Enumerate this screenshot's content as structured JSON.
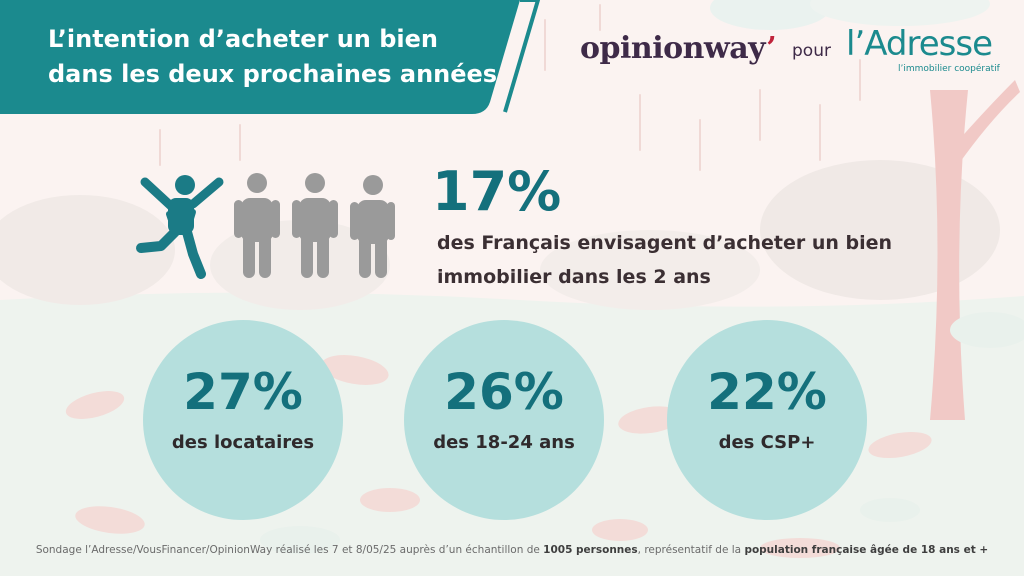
{
  "banner": {
    "title_line1": "L’intention d’acheter un bien",
    "title_line2": "dans les deux prochaines années"
  },
  "branding": {
    "opinionway": "opinionway",
    "opinionway_accent": "’",
    "pour": "pour",
    "ladresse": "l’Adresse",
    "ladresse_tagline": "l’immobilier coopératif"
  },
  "headline": {
    "percent": "17%",
    "line1": "des Français envisagent d’acheter un bien",
    "line2": "immobilier dans les 2 ans",
    "people_icons": [
      "person-jumping-icon",
      "person-icon",
      "person-icon",
      "person-icon"
    ],
    "share_shown": "1 of 4"
  },
  "stats": [
    {
      "percent": "27%",
      "label": "des locataires"
    },
    {
      "percent": "26%",
      "label": "des 18-24 ans"
    },
    {
      "percent": "22%",
      "label": "des CSP+"
    }
  ],
  "footer": {
    "part1": "Sondage l’Adresse/VousFinancer/OpinionWay réalisé les 7 et 8/05/25 auprès d’un échantillon de ",
    "bold1": "1005 personnes",
    "part2": ", représentatif de la ",
    "bold2": "population française âgée de 18 ans et +"
  },
  "colors": {
    "teal_dark": "#14707c",
    "banner_teal": "#1b8a8e",
    "circle_fill": "#b5dfdd",
    "person_grey": "#9a9a9a",
    "person_active": "#1b7b86",
    "background": "#fbf3f1",
    "opinionway_purple": "#3e2a48",
    "opinionway_red": "#c0233b"
  }
}
